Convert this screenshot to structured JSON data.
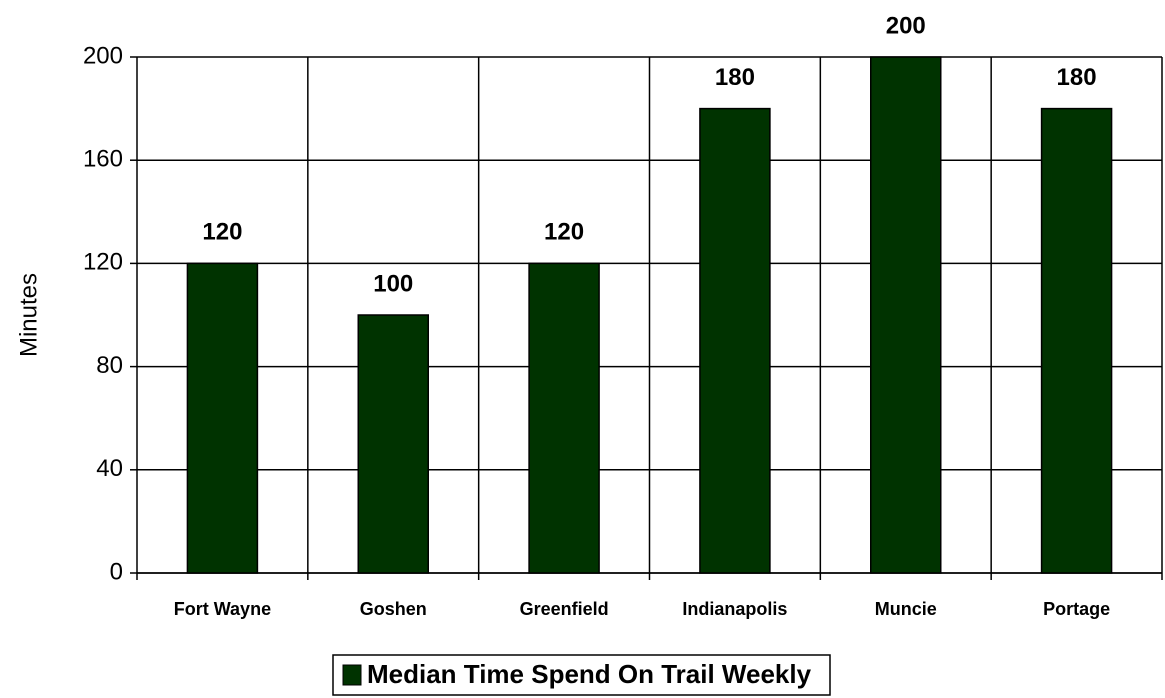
{
  "chart_data": {
    "type": "bar",
    "categories": [
      "Fort Wayne",
      "Goshen",
      "Greenfield",
      "Indianapolis",
      "Muncie",
      "Portage"
    ],
    "series": [
      {
        "name": "Median Time Spend On Trail Weekly",
        "color": "#003300",
        "values": [
          120,
          100,
          120,
          180,
          200,
          180
        ]
      }
    ],
    "y_label": "Minutes",
    "ylim": [
      0,
      200
    ],
    "yticks": [
      0,
      40,
      80,
      120,
      160,
      200
    ],
    "grid": true,
    "legend": "bottom"
  }
}
